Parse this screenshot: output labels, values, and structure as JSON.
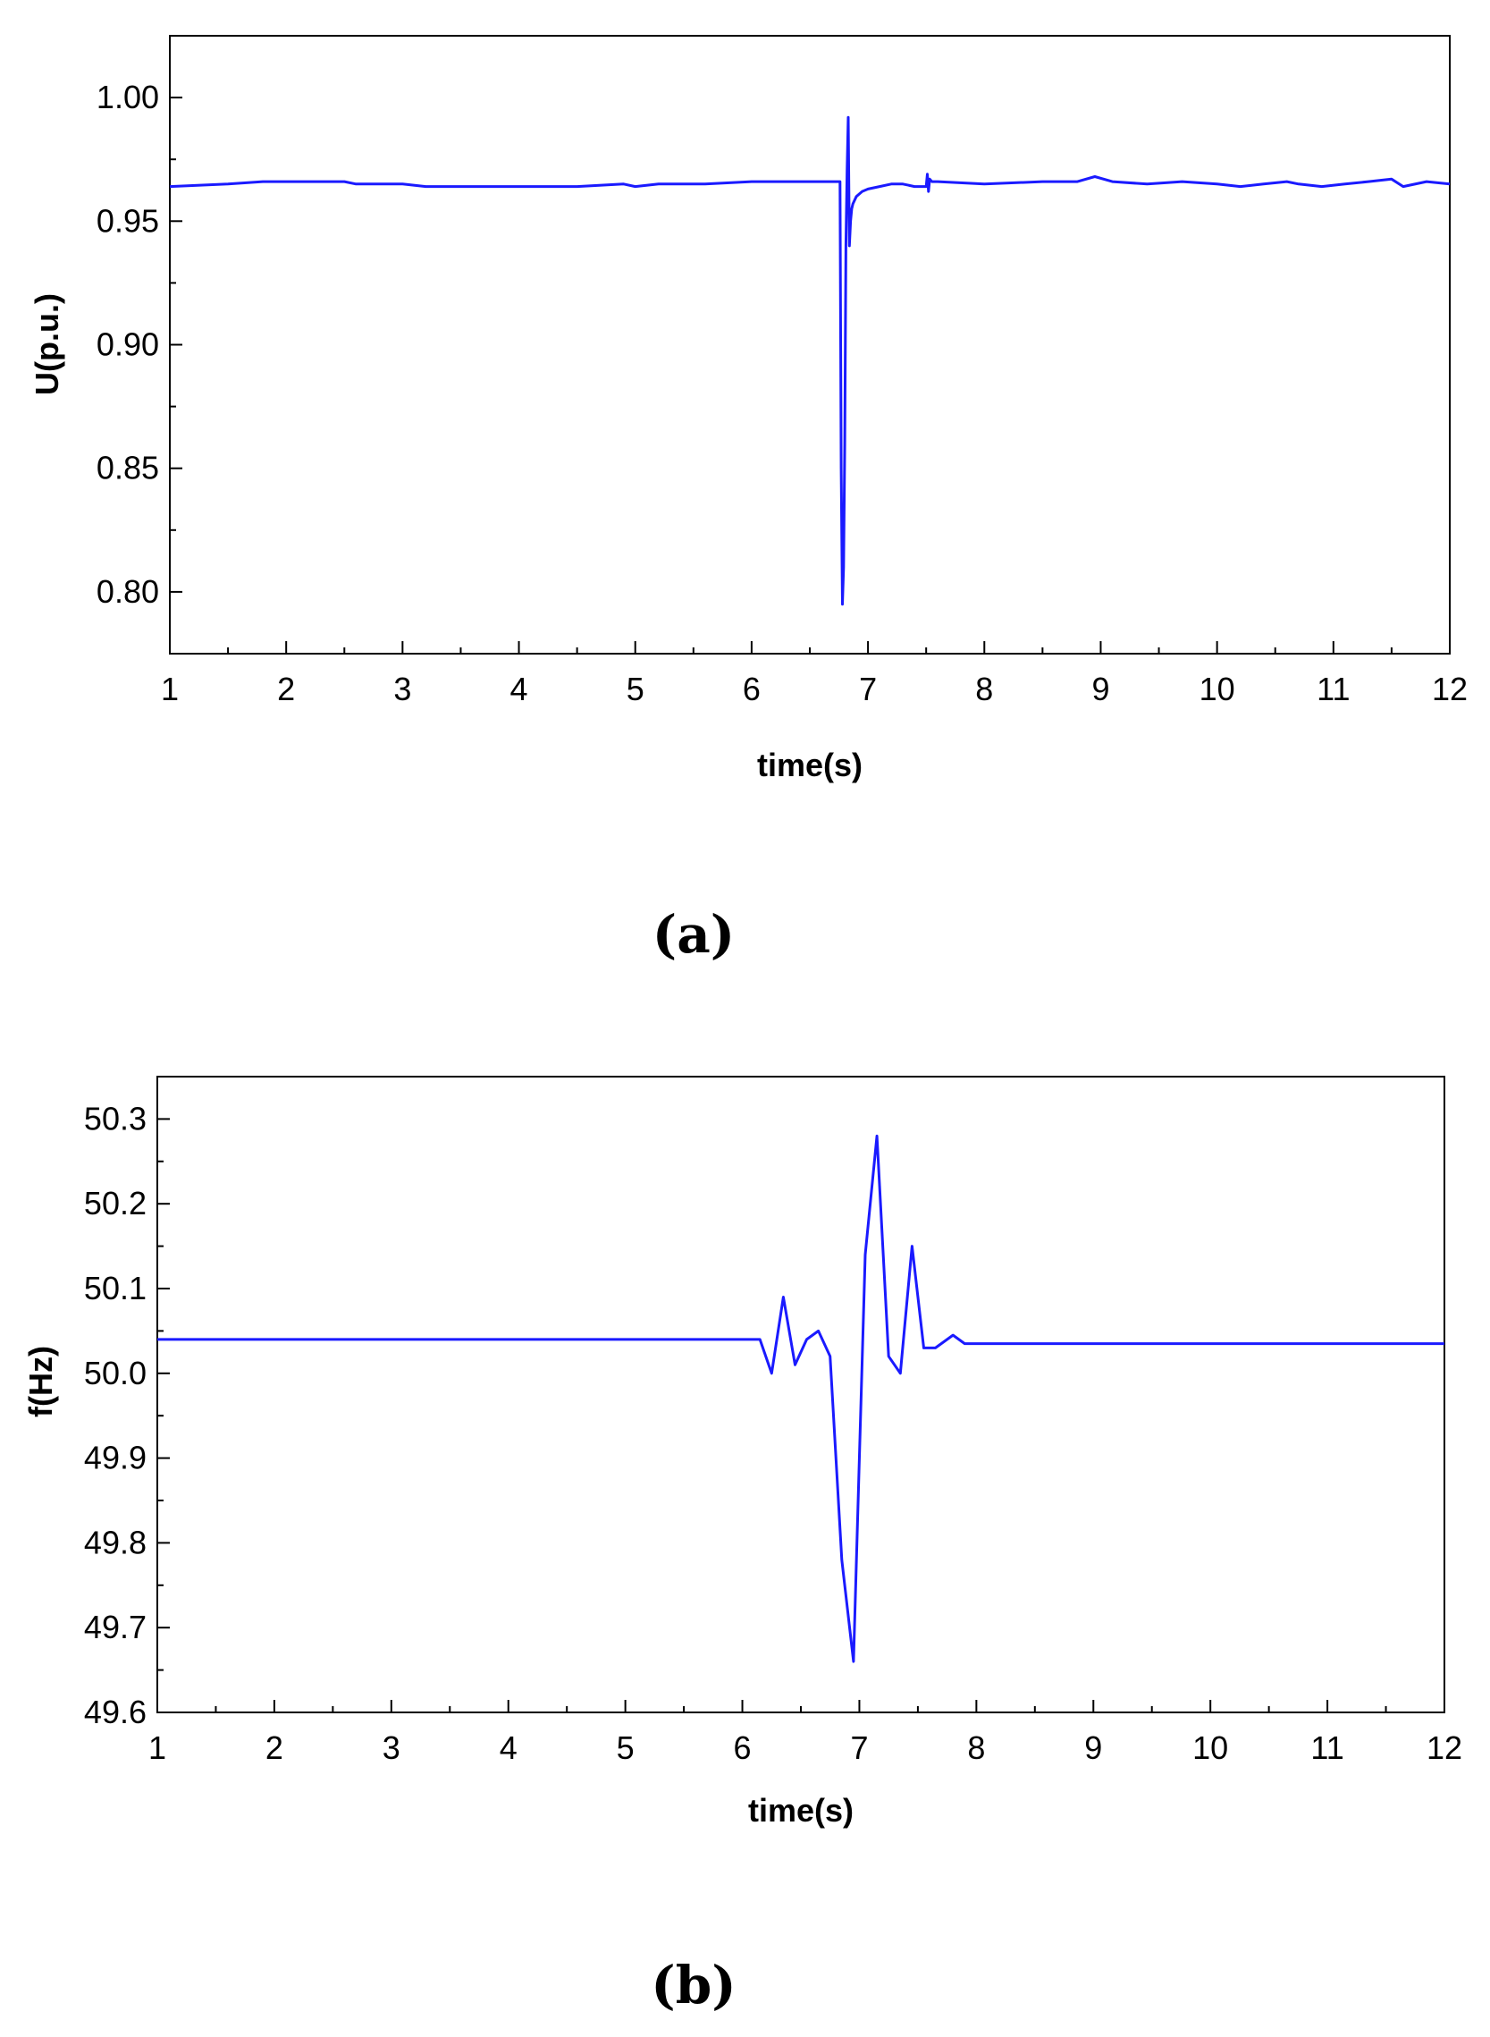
{
  "chart_data": [
    {
      "type": "line",
      "panel_label": "(a)",
      "xlabel": "time(s)",
      "ylabel": "U(p.u.)",
      "xlim": [
        1,
        12
      ],
      "ylim": [
        0.775,
        1.025
      ],
      "xticks": [
        1,
        2,
        3,
        4,
        5,
        6,
        7,
        8,
        9,
        10,
        11,
        12
      ],
      "xtick_labels": [
        "1",
        "2",
        "3",
        "4",
        "5",
        "6",
        "7",
        "8",
        "9",
        "10",
        "11",
        "12"
      ],
      "yticks": [
        0.8,
        0.85,
        0.9,
        0.95,
        1.0
      ],
      "ytick_labels": [
        "0.80",
        "0.85",
        "0.90",
        "0.95",
        "1.00"
      ],
      "grid": false,
      "color": "#1a1aff",
      "series": [
        {
          "x": [
            1.0,
            1.5,
            1.8,
            2.5,
            2.6,
            3.0,
            3.2,
            4.0,
            4.5,
            4.9,
            5.0,
            5.2,
            5.6,
            6.0,
            6.2,
            6.5,
            6.6,
            6.76,
            6.77,
            6.78,
            6.79,
            6.8,
            6.81,
            6.82,
            6.83,
            6.84,
            6.85,
            6.86,
            6.87,
            6.88,
            6.9,
            6.95,
            7.0,
            7.1,
            7.2,
            7.3,
            7.4,
            7.5,
            7.51,
            7.52,
            7.53,
            7.55,
            7.6,
            8.0,
            8.5,
            8.8,
            8.95,
            9.1,
            9.4,
            9.7,
            10.0,
            10.2,
            10.4,
            10.6,
            10.7,
            10.9,
            11.1,
            11.3,
            11.5,
            11.6,
            11.8,
            12.0
          ],
          "y": [
            0.964,
            0.965,
            0.966,
            0.966,
            0.965,
            0.965,
            0.964,
            0.964,
            0.964,
            0.965,
            0.964,
            0.965,
            0.965,
            0.966,
            0.966,
            0.966,
            0.966,
            0.966,
            0.85,
            0.795,
            0.81,
            0.86,
            0.94,
            0.97,
            0.992,
            0.94,
            0.95,
            0.955,
            0.957,
            0.958,
            0.96,
            0.962,
            0.963,
            0.964,
            0.965,
            0.965,
            0.964,
            0.964,
            0.969,
            0.962,
            0.967,
            0.966,
            0.966,
            0.965,
            0.966,
            0.966,
            0.968,
            0.966,
            0.965,
            0.966,
            0.965,
            0.964,
            0.965,
            0.966,
            0.965,
            0.964,
            0.965,
            0.966,
            0.967,
            0.964,
            0.966,
            0.965
          ]
        }
      ]
    },
    {
      "type": "line",
      "panel_label": "(b)",
      "xlabel": "time(s)",
      "ylabel": "f(Hz)",
      "xlim": [
        1,
        12
      ],
      "ylim": [
        49.6,
        50.35
      ],
      "xticks": [
        1,
        2,
        3,
        4,
        5,
        6,
        7,
        8,
        9,
        10,
        11,
        12
      ],
      "xtick_labels": [
        "1",
        "2",
        "3",
        "4",
        "5",
        "6",
        "7",
        "8",
        "9",
        "10",
        "11",
        "12"
      ],
      "yticks": [
        49.6,
        49.7,
        49.8,
        49.9,
        50.0,
        50.1,
        50.2,
        50.3
      ],
      "ytick_labels": [
        "49.6",
        "49.7",
        "49.8",
        "49.9",
        "50.0",
        "50.1",
        "50.2",
        "50.3"
      ],
      "grid": false,
      "color": "#1a1aff",
      "series": [
        {
          "x": [
            1.0,
            6.0,
            6.15,
            6.25,
            6.35,
            6.45,
            6.55,
            6.65,
            6.75,
            6.85,
            6.95,
            7.05,
            7.15,
            7.25,
            7.35,
            7.45,
            7.55,
            7.65,
            7.8,
            7.9,
            12.0
          ],
          "y": [
            50.04,
            50.04,
            50.04,
            50.0,
            50.09,
            50.01,
            50.04,
            50.05,
            50.02,
            49.78,
            49.66,
            50.14,
            50.28,
            50.02,
            50.0,
            50.15,
            50.03,
            50.03,
            50.045,
            50.035,
            50.035
          ]
        }
      ]
    }
  ]
}
